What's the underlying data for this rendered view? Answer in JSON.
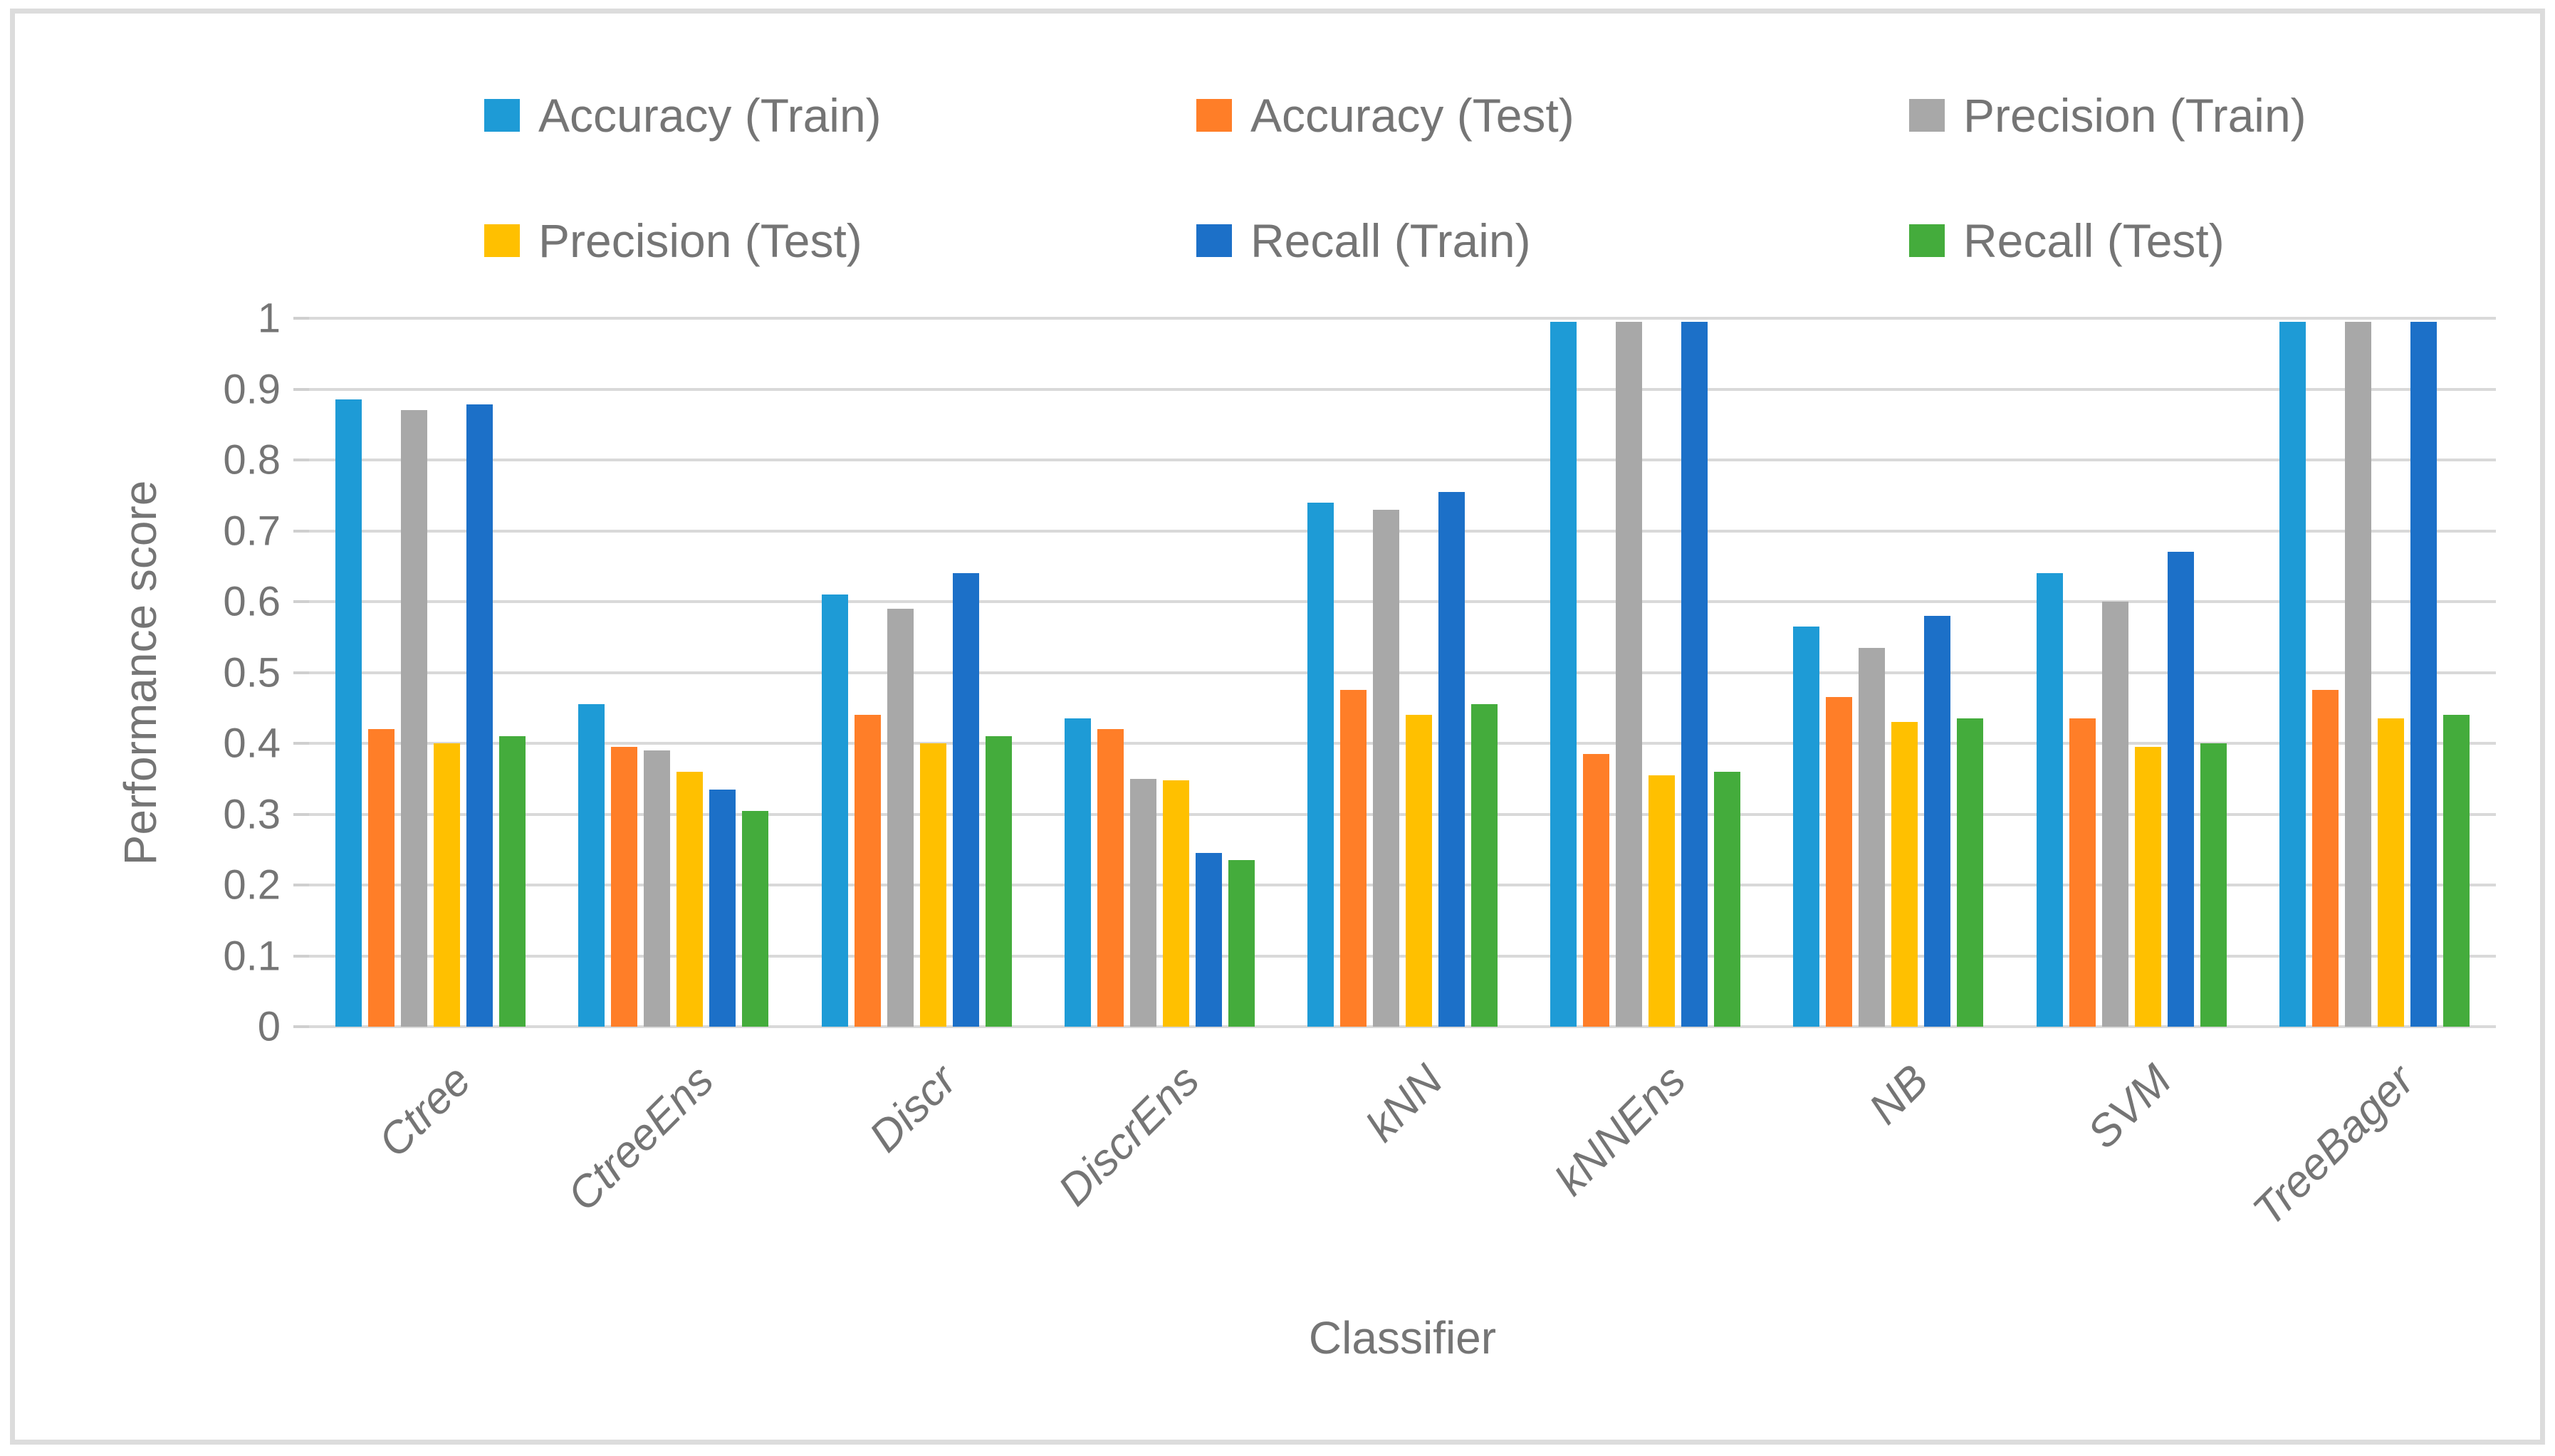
{
  "chart_data": {
    "type": "bar",
    "title": "",
    "xlabel": "Classifier",
    "ylabel": "Performance score",
    "ylim": [
      0,
      1
    ],
    "ytick_step": 0.1,
    "ytick_labels": [
      "0",
      "0.1",
      "0.2",
      "0.3",
      "0.4",
      "0.5",
      "0.6",
      "0.7",
      "0.8",
      "0.9",
      "1"
    ],
    "grid": true,
    "legend_position": "top-two-rows",
    "categories": [
      "Ctree",
      "CtreeEns",
      "Discr",
      "DiscrEns",
      "kNN",
      "kNNEns",
      "NB",
      "SVM",
      "TreeBager"
    ],
    "series": [
      {
        "name": "Accuracy (Train)",
        "color": "#1E9BD6",
        "values": [
          0.885,
          0.455,
          0.61,
          0.435,
          0.74,
          0.995,
          0.565,
          0.64,
          0.995
        ]
      },
      {
        "name": "Accuracy (Test)",
        "color": "#FF7E28",
        "values": [
          0.42,
          0.395,
          0.44,
          0.42,
          0.475,
          0.385,
          0.465,
          0.435,
          0.475
        ]
      },
      {
        "name": "Precision (Train)",
        "color": "#A8A8A8",
        "values": [
          0.87,
          0.39,
          0.59,
          0.35,
          0.73,
          0.995,
          0.535,
          0.6,
          0.995
        ]
      },
      {
        "name": "Precision (Test)",
        "color": "#FFC000",
        "values": [
          0.4,
          0.36,
          0.4,
          0.348,
          0.44,
          0.355,
          0.43,
          0.395,
          0.435
        ]
      },
      {
        "name": "Recall (Train)",
        "color": "#1C70C8",
        "values": [
          0.878,
          0.335,
          0.64,
          0.245,
          0.755,
          0.995,
          0.58,
          0.67,
          0.995
        ]
      },
      {
        "name": "Recall (Test)",
        "color": "#44AC3C",
        "values": [
          0.41,
          0.305,
          0.41,
          0.235,
          0.455,
          0.36,
          0.435,
          0.4,
          0.44
        ]
      }
    ]
  },
  "colors": {
    "gridline": "#D9D9D9",
    "axis_line": "#D9D9D9",
    "text": "#757575",
    "frame_border": "#DCDCDC"
  }
}
